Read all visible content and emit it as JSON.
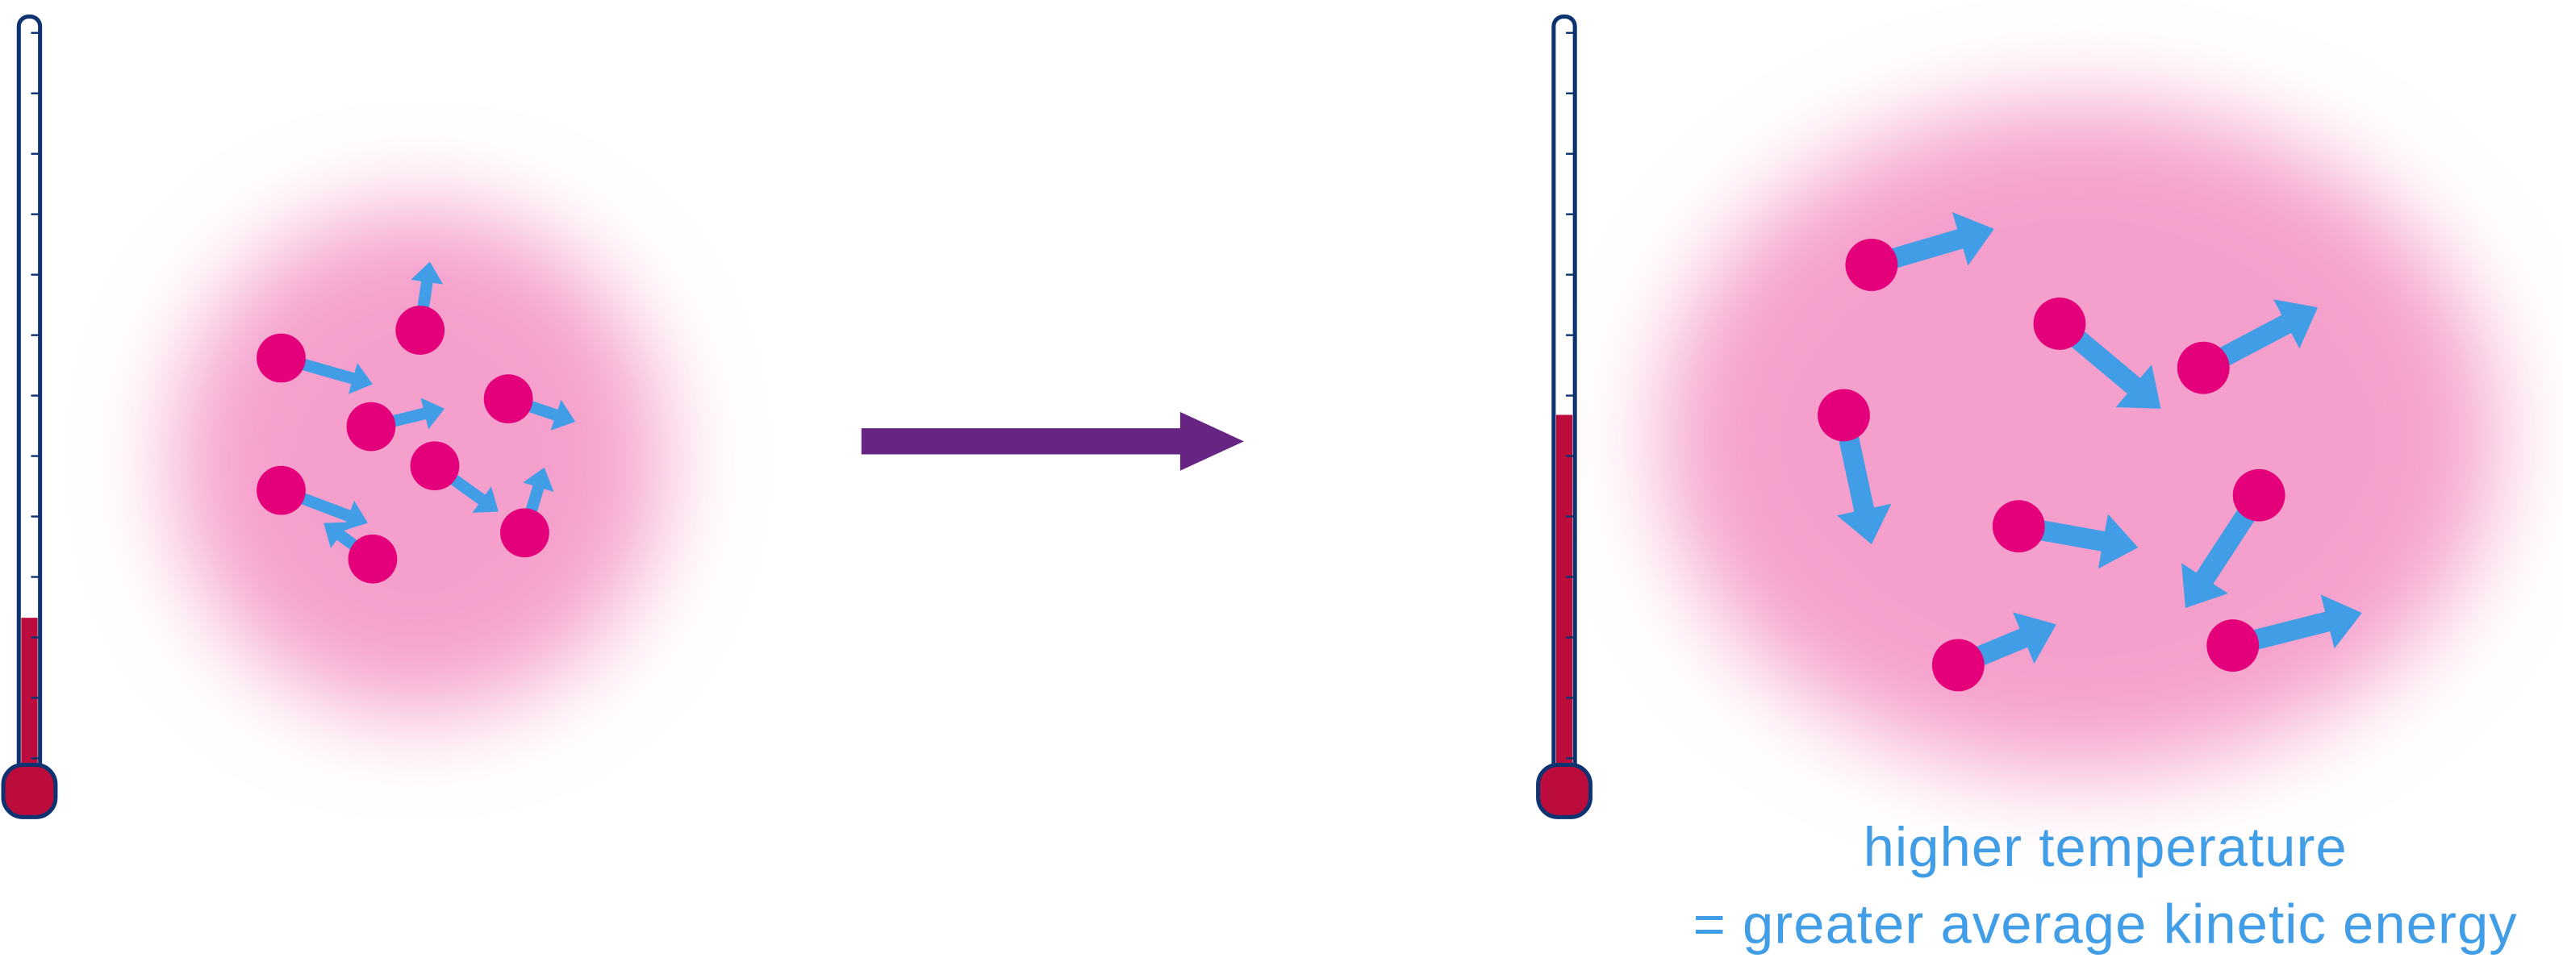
{
  "colors": {
    "particle": "#e3007a",
    "gas_cloud": "#f5a0cc",
    "velocity_arrow": "#409de6",
    "thermometer_outline": "#0d3470",
    "thermometer_fill": "#bc0c3c",
    "transition_arrow": "#662483",
    "caption": "#409de6"
  },
  "panels": [
    {
      "name": "low-temperature",
      "thermometer_level": 0.2,
      "particle_count": 8
    },
    {
      "name": "high-temperature",
      "thermometer_level": 0.47,
      "particle_count": 8
    }
  ],
  "caption": {
    "line1": "higher temperature",
    "line2": "= greater average kinetic energy"
  }
}
